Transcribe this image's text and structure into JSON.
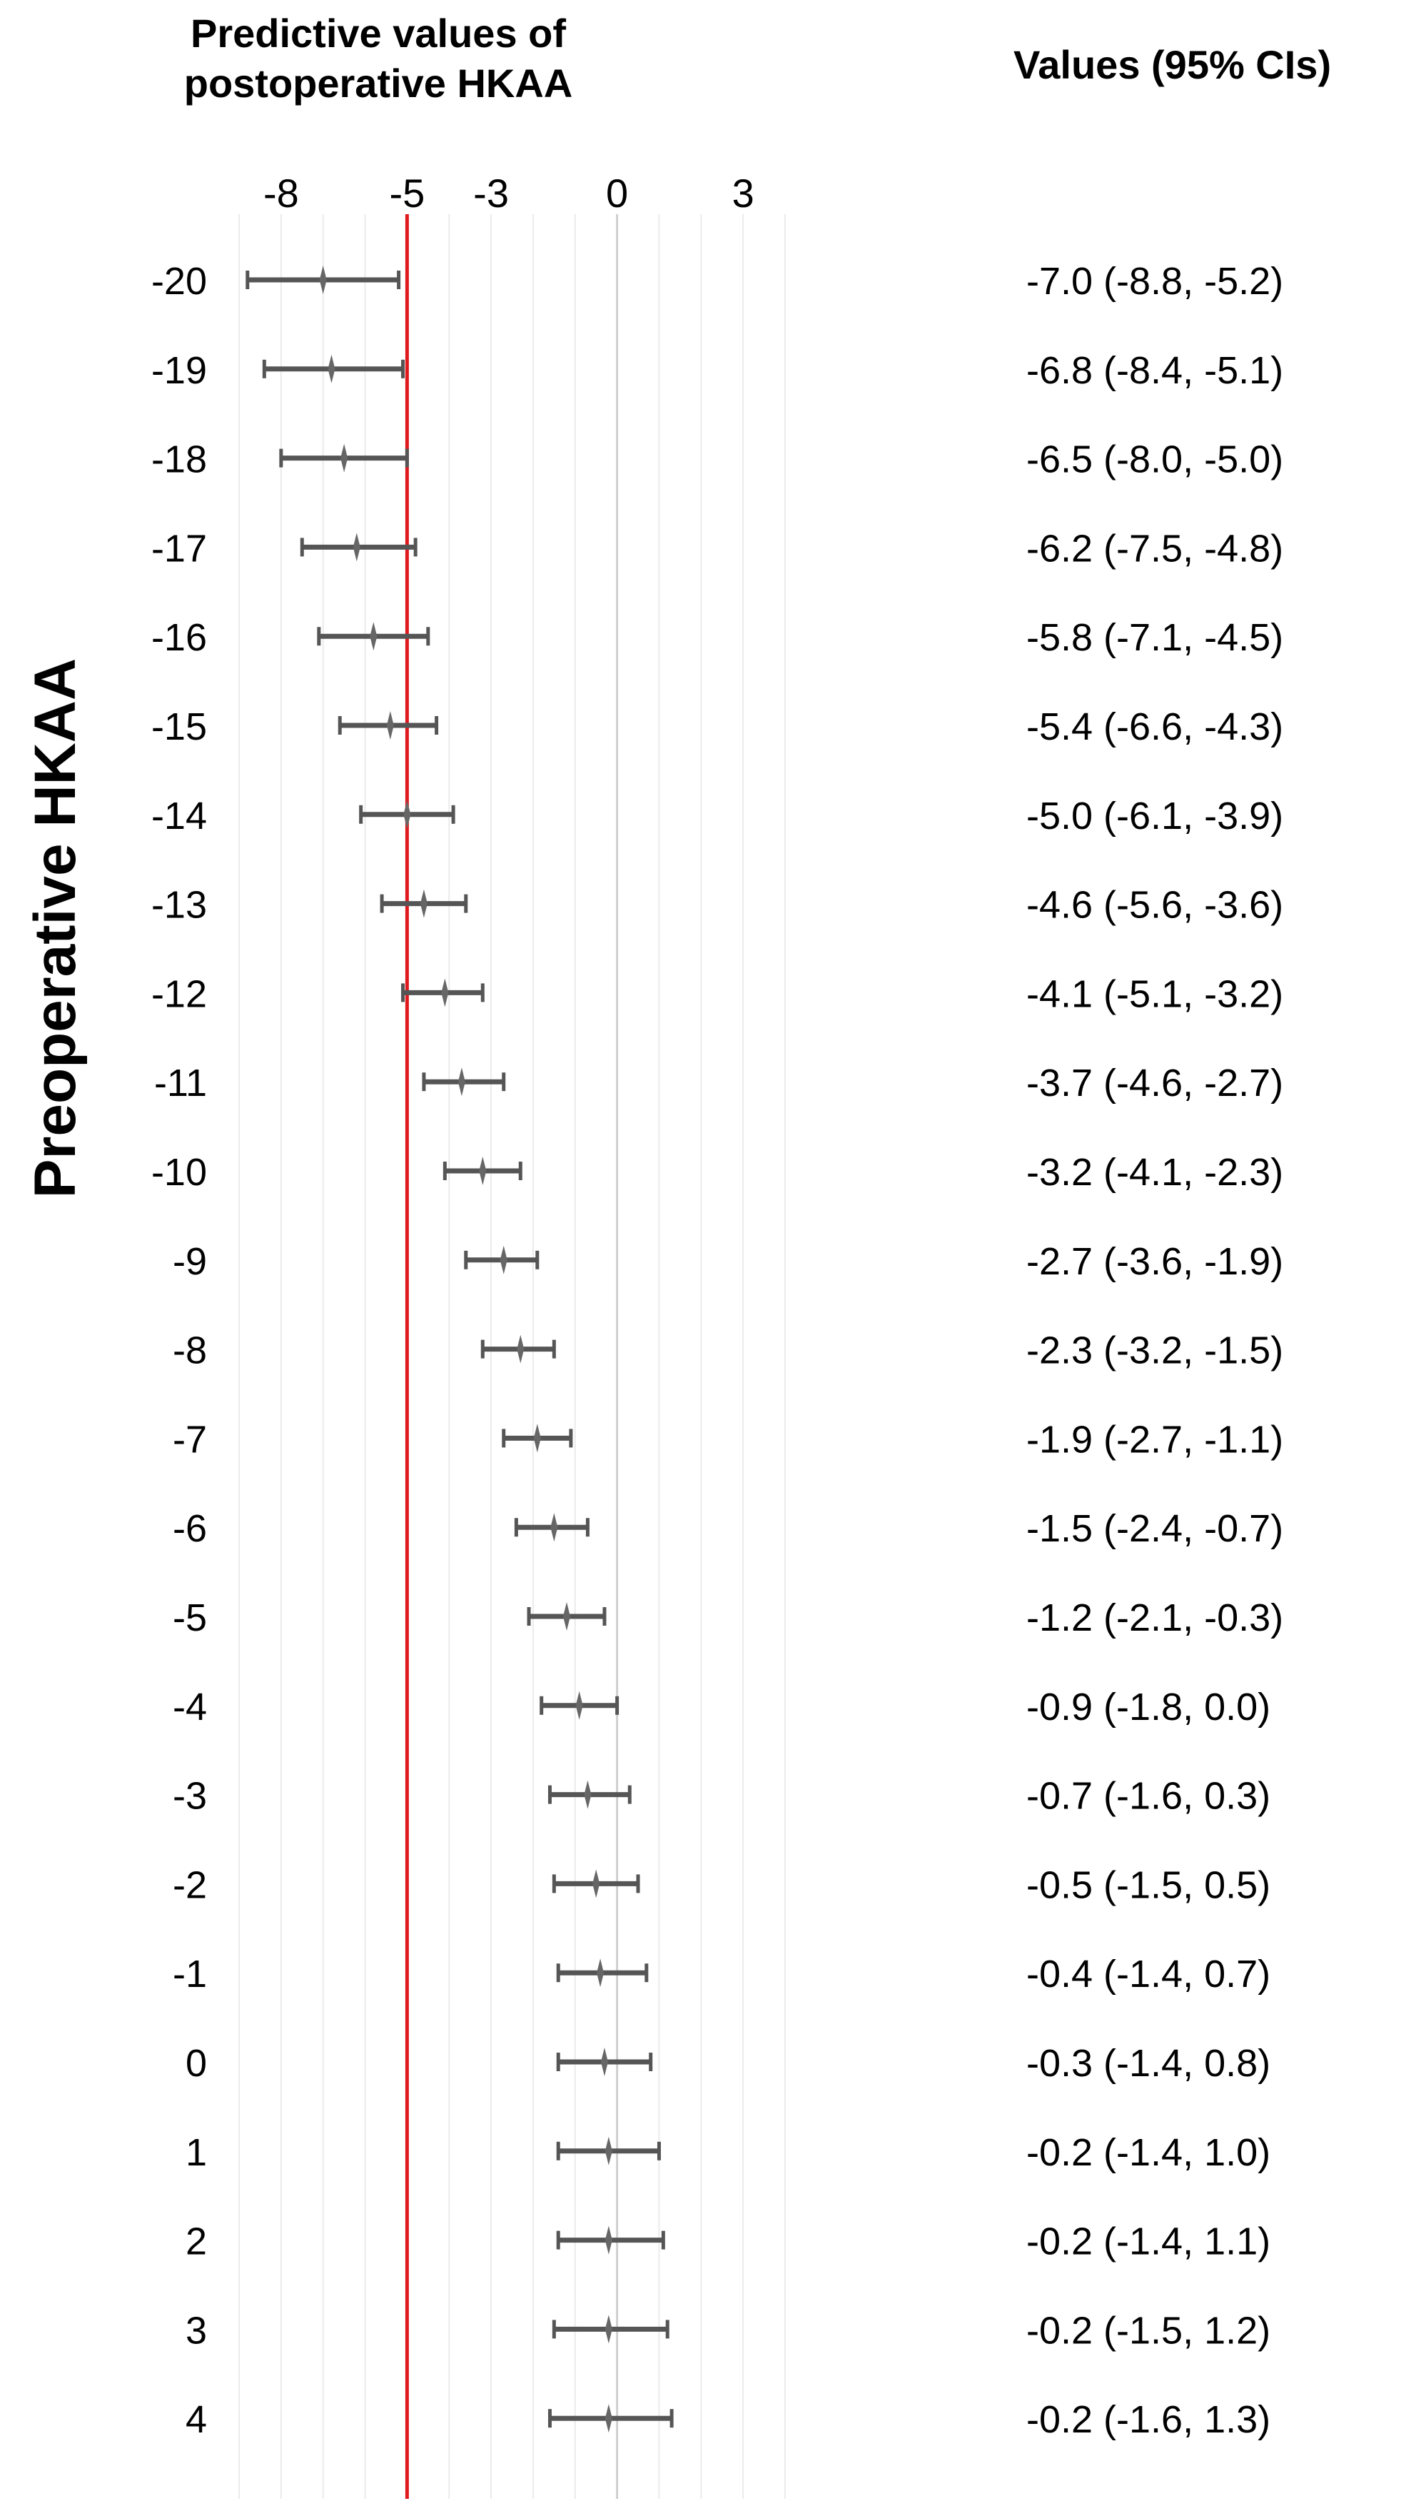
{
  "chart_data": {
    "type": "forest",
    "title": "Predictive values of postoperative HKAA",
    "ylabel": "Preoperative HKAA",
    "values_header": "Values (95% CIs)",
    "x_ticks": [
      -8,
      -5,
      -3,
      0,
      3
    ],
    "xlim": [
      -9,
      4
    ],
    "reference_line": -5,
    "reference_color": "#e0191e",
    "bar_color": "#555555",
    "grid": "vertical",
    "rows": [
      {
        "label": "-20",
        "estimate": -7.0,
        "lower": -8.8,
        "upper": -5.2,
        "text": "-7.0 (-8.8, -5.2)"
      },
      {
        "label": "-19",
        "estimate": -6.8,
        "lower": -8.4,
        "upper": -5.1,
        "text": "-6.8 (-8.4, -5.1)"
      },
      {
        "label": "-18",
        "estimate": -6.5,
        "lower": -8.0,
        "upper": -5.0,
        "text": "-6.5 (-8.0, -5.0)"
      },
      {
        "label": "-17",
        "estimate": -6.2,
        "lower": -7.5,
        "upper": -4.8,
        "text": "-6.2 (-7.5, -4.8)"
      },
      {
        "label": "-16",
        "estimate": -5.8,
        "lower": -7.1,
        "upper": -4.5,
        "text": "-5.8 (-7.1, -4.5)"
      },
      {
        "label": "-15",
        "estimate": -5.4,
        "lower": -6.6,
        "upper": -4.3,
        "text": "-5.4 (-6.6, -4.3)"
      },
      {
        "label": "-14",
        "estimate": -5.0,
        "lower": -6.1,
        "upper": -3.9,
        "text": "-5.0 (-6.1, -3.9)"
      },
      {
        "label": "-13",
        "estimate": -4.6,
        "lower": -5.6,
        "upper": -3.6,
        "text": "-4.6 (-5.6, -3.6)"
      },
      {
        "label": "-12",
        "estimate": -4.1,
        "lower": -5.1,
        "upper": -3.2,
        "text": "-4.1 (-5.1, -3.2)"
      },
      {
        "label": "-11",
        "estimate": -3.7,
        "lower": -4.6,
        "upper": -2.7,
        "text": "-3.7 (-4.6, -2.7)"
      },
      {
        "label": "-10",
        "estimate": -3.2,
        "lower": -4.1,
        "upper": -2.3,
        "text": "-3.2 (-4.1, -2.3)"
      },
      {
        "label": "-9",
        "estimate": -2.7,
        "lower": -3.6,
        "upper": -1.9,
        "text": "-2.7 (-3.6, -1.9)"
      },
      {
        "label": "-8",
        "estimate": -2.3,
        "lower": -3.2,
        "upper": -1.5,
        "text": "-2.3 (-3.2, -1.5)"
      },
      {
        "label": "-7",
        "estimate": -1.9,
        "lower": -2.7,
        "upper": -1.1,
        "text": "-1.9 (-2.7, -1.1)"
      },
      {
        "label": "-6",
        "estimate": -1.5,
        "lower": -2.4,
        "upper": -0.7,
        "text": "-1.5 (-2.4, -0.7)"
      },
      {
        "label": "-5",
        "estimate": -1.2,
        "lower": -2.1,
        "upper": -0.3,
        "text": "-1.2 (-2.1, -0.3)"
      },
      {
        "label": "-4",
        "estimate": -0.9,
        "lower": -1.8,
        "upper": 0.0,
        "text": "-0.9 (-1.8, 0.0)"
      },
      {
        "label": "-3",
        "estimate": -0.7,
        "lower": -1.6,
        "upper": 0.3,
        "text": "-0.7 (-1.6, 0.3)"
      },
      {
        "label": "-2",
        "estimate": -0.5,
        "lower": -1.5,
        "upper": 0.5,
        "text": "-0.5 (-1.5, 0.5)"
      },
      {
        "label": "-1",
        "estimate": -0.4,
        "lower": -1.4,
        "upper": 0.7,
        "text": "-0.4 (-1.4, 0.7)"
      },
      {
        "label": "0",
        "estimate": -0.3,
        "lower": -1.4,
        "upper": 0.8,
        "text": "-0.3 (-1.4, 0.8)"
      },
      {
        "label": "1",
        "estimate": -0.2,
        "lower": -1.4,
        "upper": 1.0,
        "text": "-0.2 (-1.4, 1.0)"
      },
      {
        "label": "2",
        "estimate": -0.2,
        "lower": -1.4,
        "upper": 1.1,
        "text": "-0.2 (-1.4, 1.1)"
      },
      {
        "label": "3",
        "estimate": -0.2,
        "lower": -1.5,
        "upper": 1.2,
        "text": "-0.2 (-1.5, 1.2)"
      },
      {
        "label": "4",
        "estimate": -0.2,
        "lower": -1.6,
        "upper": 1.3,
        "text": "-0.2 (-1.6, 1.3)"
      }
    ]
  }
}
